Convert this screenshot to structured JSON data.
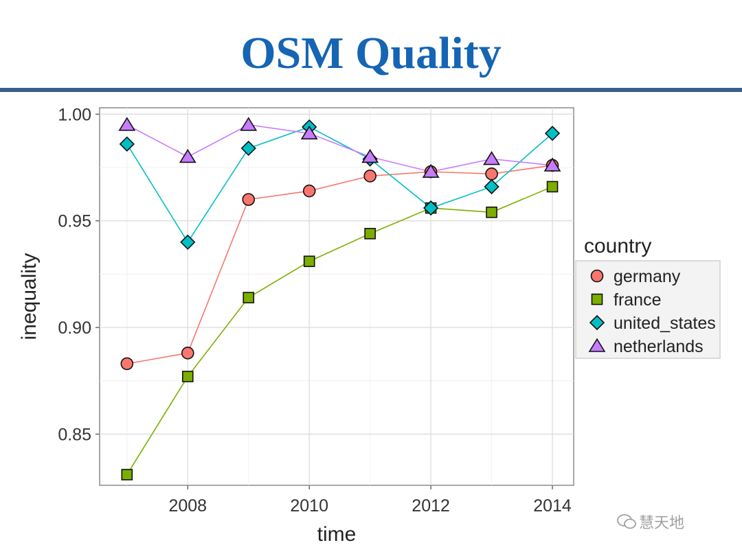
{
  "slide": {
    "title": "OSM Quality"
  },
  "watermark": {
    "text": "慧天地"
  },
  "colors": {
    "title": "#1565b4",
    "rule": "#3a5f8c"
  },
  "chart_data": {
    "type": "line",
    "x": [
      2007,
      2008,
      2009,
      2010,
      2011,
      2012,
      2013,
      2014
    ],
    "xticks": [
      2008,
      2010,
      2012,
      2014
    ],
    "yticks": [
      0.85,
      0.9,
      0.95,
      1.0
    ],
    "ytick_labels": [
      "0.85",
      "0.90",
      "0.95",
      "1.00"
    ],
    "xlim": [
      2006.55,
      2014.35
    ],
    "ylim": [
      0.826,
      1.003
    ],
    "xlabel": "time",
    "ylabel": "inequality",
    "legend_title": "country",
    "legend_position": "right",
    "grid": true,
    "series": [
      {
        "name": "germany",
        "marker": "circle",
        "fill": "#f8766d",
        "line": "#f8766d",
        "values": [
          0.883,
          0.888,
          0.96,
          0.964,
          0.971,
          0.973,
          0.972,
          0.976
        ]
      },
      {
        "name": "france",
        "marker": "square",
        "fill": "#7cae00",
        "line": "#7cae00",
        "values": [
          0.831,
          0.877,
          0.914,
          0.931,
          0.944,
          0.956,
          0.954,
          0.966
        ]
      },
      {
        "name": "united_states",
        "marker": "diamond",
        "fill": "#00bfc4",
        "line": "#00bfc4",
        "values": [
          0.986,
          0.94,
          0.984,
          0.994,
          0.979,
          0.956,
          0.966,
          0.991
        ]
      },
      {
        "name": "netherlands",
        "marker": "triangle",
        "fill": "#c77cff",
        "line": "#c77cff",
        "values": [
          0.995,
          0.98,
          0.995,
          0.991,
          0.98,
          0.973,
          0.979,
          0.976
        ]
      }
    ]
  }
}
